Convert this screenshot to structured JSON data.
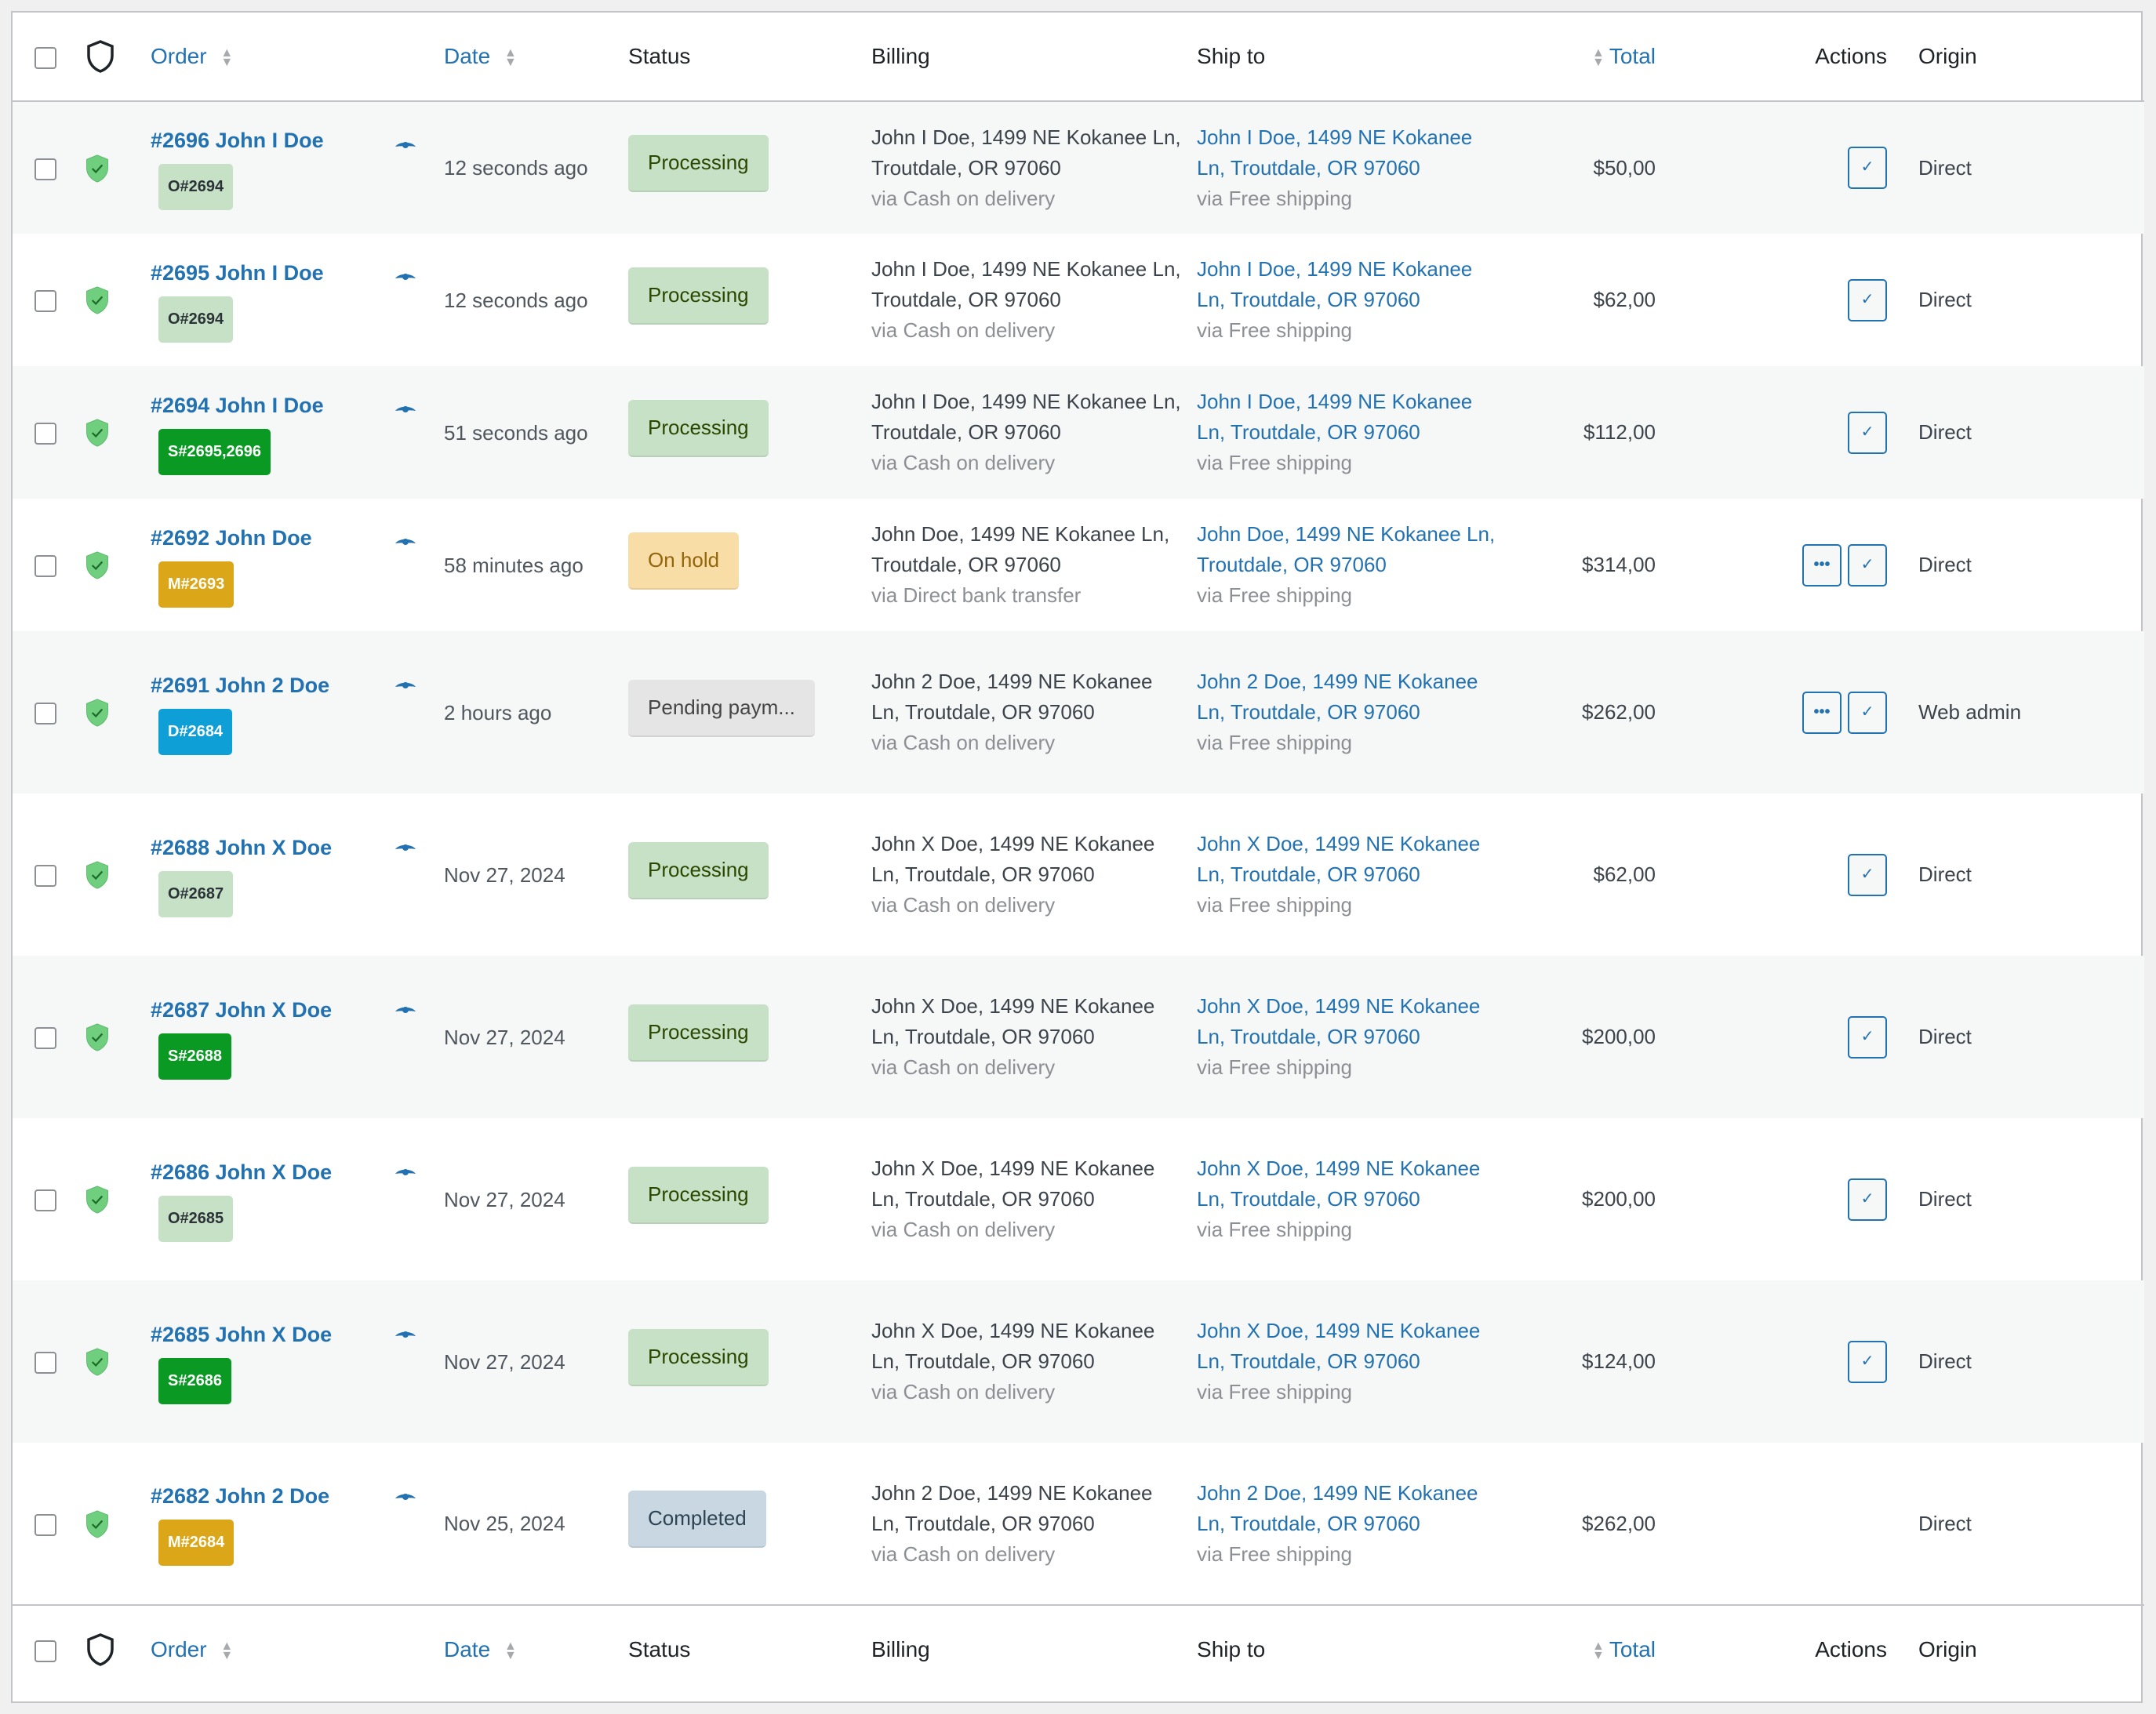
{
  "columns": {
    "order": "Order",
    "date": "Date",
    "status": "Status",
    "billing": "Billing",
    "ship_to": "Ship to",
    "total": "Total",
    "actions": "Actions",
    "origin": "Origin"
  },
  "icons": {
    "shield": "shield-icon",
    "eye": "eye-icon",
    "complete": "check-icon",
    "more": "more-icon"
  },
  "orders": [
    {
      "order": "#2696 John I Doe",
      "tag": "O#2694",
      "tag_type": "o",
      "date": "12 seconds ago",
      "status": "Processing",
      "status_type": "processing",
      "billing": "John I Doe, 1499 NE Kokanee Ln, Troutdale, OR 97060",
      "billing_via": "via Cash on delivery",
      "ship": "John I Doe, 1499 NE Kokanee Ln, Troutdale, OR 97060",
      "ship_via": "via Free shipping",
      "total": "$50,00",
      "more": false,
      "complete": true,
      "origin": "Direct"
    },
    {
      "order": "#2695 John I Doe",
      "tag": "O#2694",
      "tag_type": "o",
      "date": "12 seconds ago",
      "status": "Processing",
      "status_type": "processing",
      "billing": "John I Doe, 1499 NE Kokanee Ln, Troutdale, OR 97060",
      "billing_via": "via Cash on delivery",
      "ship": "John I Doe, 1499 NE Kokanee Ln, Troutdale, OR 97060",
      "ship_via": "via Free shipping",
      "total": "$62,00",
      "more": false,
      "complete": true,
      "origin": "Direct"
    },
    {
      "order": "#2694 John I Doe",
      "tag": "S#2695,2696",
      "tag_type": "s",
      "date": "51 seconds ago",
      "status": "Processing",
      "status_type": "processing",
      "billing": "John I Doe, 1499 NE Kokanee Ln, Troutdale, OR 97060",
      "billing_via": "via Cash on delivery",
      "ship": "John I Doe, 1499 NE Kokanee Ln, Troutdale, OR 97060",
      "ship_via": "via Free shipping",
      "total": "$112,00",
      "more": false,
      "complete": true,
      "origin": "Direct"
    },
    {
      "order": "#2692 John Doe",
      "tag": "M#2693",
      "tag_type": "m",
      "date": "58 minutes ago",
      "status": "On hold",
      "status_type": "onhold",
      "billing": "John Doe, 1499 NE Kokanee Ln, Troutdale, OR 97060",
      "billing_via": "via Direct bank transfer",
      "ship": "John Doe, 1499 NE Kokanee Ln, Troutdale, OR 97060",
      "ship_via": "via Free shipping",
      "total": "$314,00",
      "more": true,
      "complete": true,
      "origin": "Direct"
    },
    {
      "order": "#2691 John 2 Doe",
      "tag": "D#2684",
      "tag_type": "d",
      "date": "2 hours ago",
      "status": "Pending paym...",
      "status_type": "pending",
      "billing": "John 2 Doe, 1499 NE Kokanee Ln, Troutdale, OR 97060",
      "billing_via": "via Cash on delivery",
      "ship": "John 2 Doe, 1499 NE Kokanee Ln, Troutdale, OR 97060",
      "ship_via": "via Free shipping",
      "total": "$262,00",
      "more": true,
      "complete": true,
      "origin": "Web admin"
    },
    {
      "order": "#2688 John X Doe",
      "tag": "O#2687",
      "tag_type": "o",
      "date": "Nov 27, 2024",
      "status": "Processing",
      "status_type": "processing",
      "billing": "John X Doe, 1499 NE Kokanee Ln, Troutdale, OR 97060",
      "billing_via": "via Cash on delivery",
      "ship": "John X Doe, 1499 NE Kokanee Ln, Troutdale, OR 97060",
      "ship_via": "via Free shipping",
      "total": "$62,00",
      "more": false,
      "complete": true,
      "origin": "Direct"
    },
    {
      "order": "#2687 John X Doe",
      "tag": "S#2688",
      "tag_type": "s",
      "date": "Nov 27, 2024",
      "status": "Processing",
      "status_type": "processing",
      "billing": "John X Doe, 1499 NE Kokanee Ln, Troutdale, OR 97060",
      "billing_via": "via Cash on delivery",
      "ship": "John X Doe, 1499 NE Kokanee Ln, Troutdale, OR 97060",
      "ship_via": "via Free shipping",
      "total": "$200,00",
      "more": false,
      "complete": true,
      "origin": "Direct"
    },
    {
      "order": "#2686 John X Doe",
      "tag": "O#2685",
      "tag_type": "o",
      "date": "Nov 27, 2024",
      "status": "Processing",
      "status_type": "processing",
      "billing": "John X Doe, 1499 NE Kokanee Ln, Troutdale, OR 97060",
      "billing_via": "via Cash on delivery",
      "ship": "John X Doe, 1499 NE Kokanee Ln, Troutdale, OR 97060",
      "ship_via": "via Free shipping",
      "total": "$200,00",
      "more": false,
      "complete": true,
      "origin": "Direct"
    },
    {
      "order": "#2685 John X Doe",
      "tag": "S#2686",
      "tag_type": "s",
      "date": "Nov 27, 2024",
      "status": "Processing",
      "status_type": "processing",
      "billing": "John X Doe, 1499 NE Kokanee Ln, Troutdale, OR 97060",
      "billing_via": "via Cash on delivery",
      "ship": "John X Doe, 1499 NE Kokanee Ln, Troutdale, OR 97060",
      "ship_via": "via Free shipping",
      "total": "$124,00",
      "more": false,
      "complete": true,
      "origin": "Direct"
    },
    {
      "order": "#2682 John 2 Doe",
      "tag": "M#2684",
      "tag_type": "m",
      "date": "Nov 25, 2024",
      "status": "Completed",
      "status_type": "completed",
      "billing": "John 2 Doe, 1499 NE Kokanee Ln, Troutdale, OR 97060",
      "billing_via": "via Cash on delivery",
      "ship": "John 2 Doe, 1499 NE Kokanee Ln, Troutdale, OR 97060",
      "ship_via": "via Free shipping",
      "total": "$262,00",
      "more": false,
      "complete": false,
      "origin": "Direct"
    }
  ]
}
